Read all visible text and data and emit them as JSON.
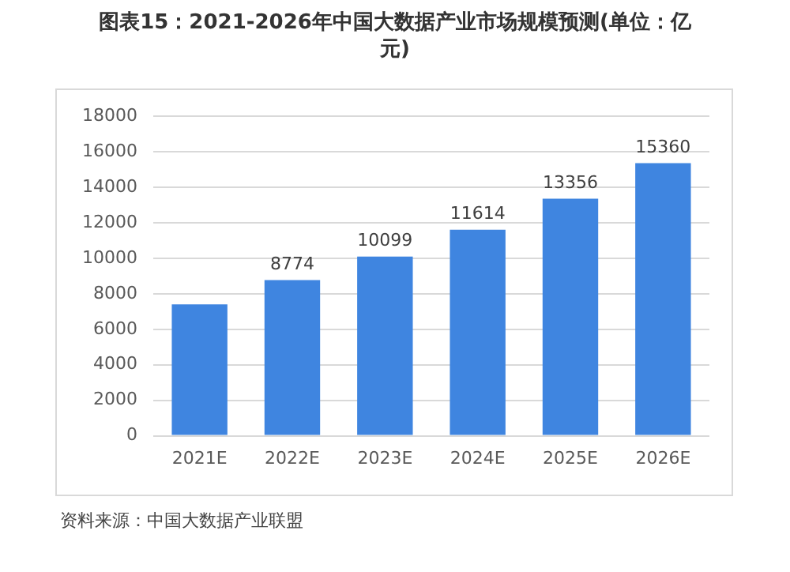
{
  "chart_data": {
    "type": "bar",
    "title": "图表15：2021-2026年中国大数据产业市场规模预测(单位：亿元)",
    "categories": [
      "2021E",
      "2022E",
      "2023E",
      "2024E",
      "2025E",
      "2026E"
    ],
    "values": [
      7400,
      8774,
      10099,
      11614,
      13356,
      15360
    ],
    "value_labels": [
      null,
      "8774",
      "10099",
      "11614",
      "13356",
      "15360"
    ],
    "color": "#3f85e0",
    "ylim": [
      0,
      18000
    ],
    "yticks": [
      0,
      2000,
      4000,
      6000,
      8000,
      10000,
      12000,
      14000,
      16000,
      18000
    ],
    "grid": "y",
    "legend": false,
    "annotations": [
      "资料来源：中国大数据产业联盟"
    ]
  }
}
